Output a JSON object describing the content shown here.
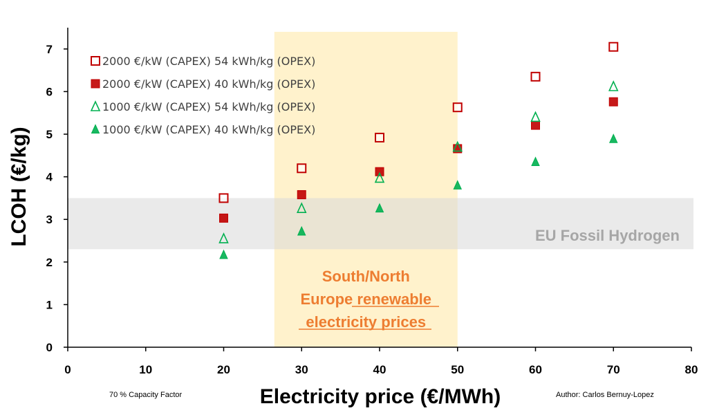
{
  "chart_data": {
    "type": "scatter",
    "xlabel": "Electricity price (€/MWh)",
    "ylabel": "LCOH (€/kg)",
    "xlim": [
      0,
      80
    ],
    "ylim": [
      0,
      7.5
    ],
    "xticks": [
      0,
      10,
      20,
      30,
      40,
      50,
      60,
      70,
      80
    ],
    "yticks": [
      0,
      1,
      2,
      3,
      4,
      5,
      6,
      7
    ],
    "x": [
      20,
      30,
      40,
      50,
      60,
      70
    ],
    "series": [
      {
        "name": "2000 €/kW (CAPEX) 54 kWh/kg (OPEX)",
        "marker": "square-open",
        "color": "#c00000",
        "values": [
          3.5,
          4.2,
          4.92,
          5.63,
          6.35,
          7.05
        ]
      },
      {
        "name": "2000 €/kW (CAPEX) 40 kWh/kg (OPEX)",
        "marker": "square-filled",
        "color": "#c00000",
        "values": [
          3.03,
          3.58,
          4.12,
          4.66,
          5.21,
          5.76
        ]
      },
      {
        "name": "1000 €/kW (CAPEX) 54 kWh/kg (OPEX)",
        "marker": "triangle-open",
        "color": "#00b050",
        "values": [
          2.55,
          3.26,
          3.97,
          4.7,
          5.4,
          6.12
        ]
      },
      {
        "name": "1000 €/kW (CAPEX) 40 kWh/kg (OPEX)",
        "marker": "triangle-filled",
        "color": "#00b050",
        "values": [
          2.17,
          2.72,
          3.26,
          3.8,
          4.35,
          4.89
        ]
      }
    ],
    "bands": [
      {
        "label": "EU Fossil Hydrogen",
        "axis": "y",
        "range": [
          2.3,
          3.5
        ],
        "color": "#d9d9d9"
      },
      {
        "label_lines": [
          "South/North",
          "Europe renewable",
          "electricity prices"
        ],
        "axis": "x",
        "range": [
          26.5,
          50
        ],
        "color": "#fff2cc"
      }
    ],
    "legend_position": "top-left",
    "footnotes": {
      "left": "70 % Capacity Factor",
      "right": "Author: Carlos Bernuy-Lopez"
    }
  }
}
